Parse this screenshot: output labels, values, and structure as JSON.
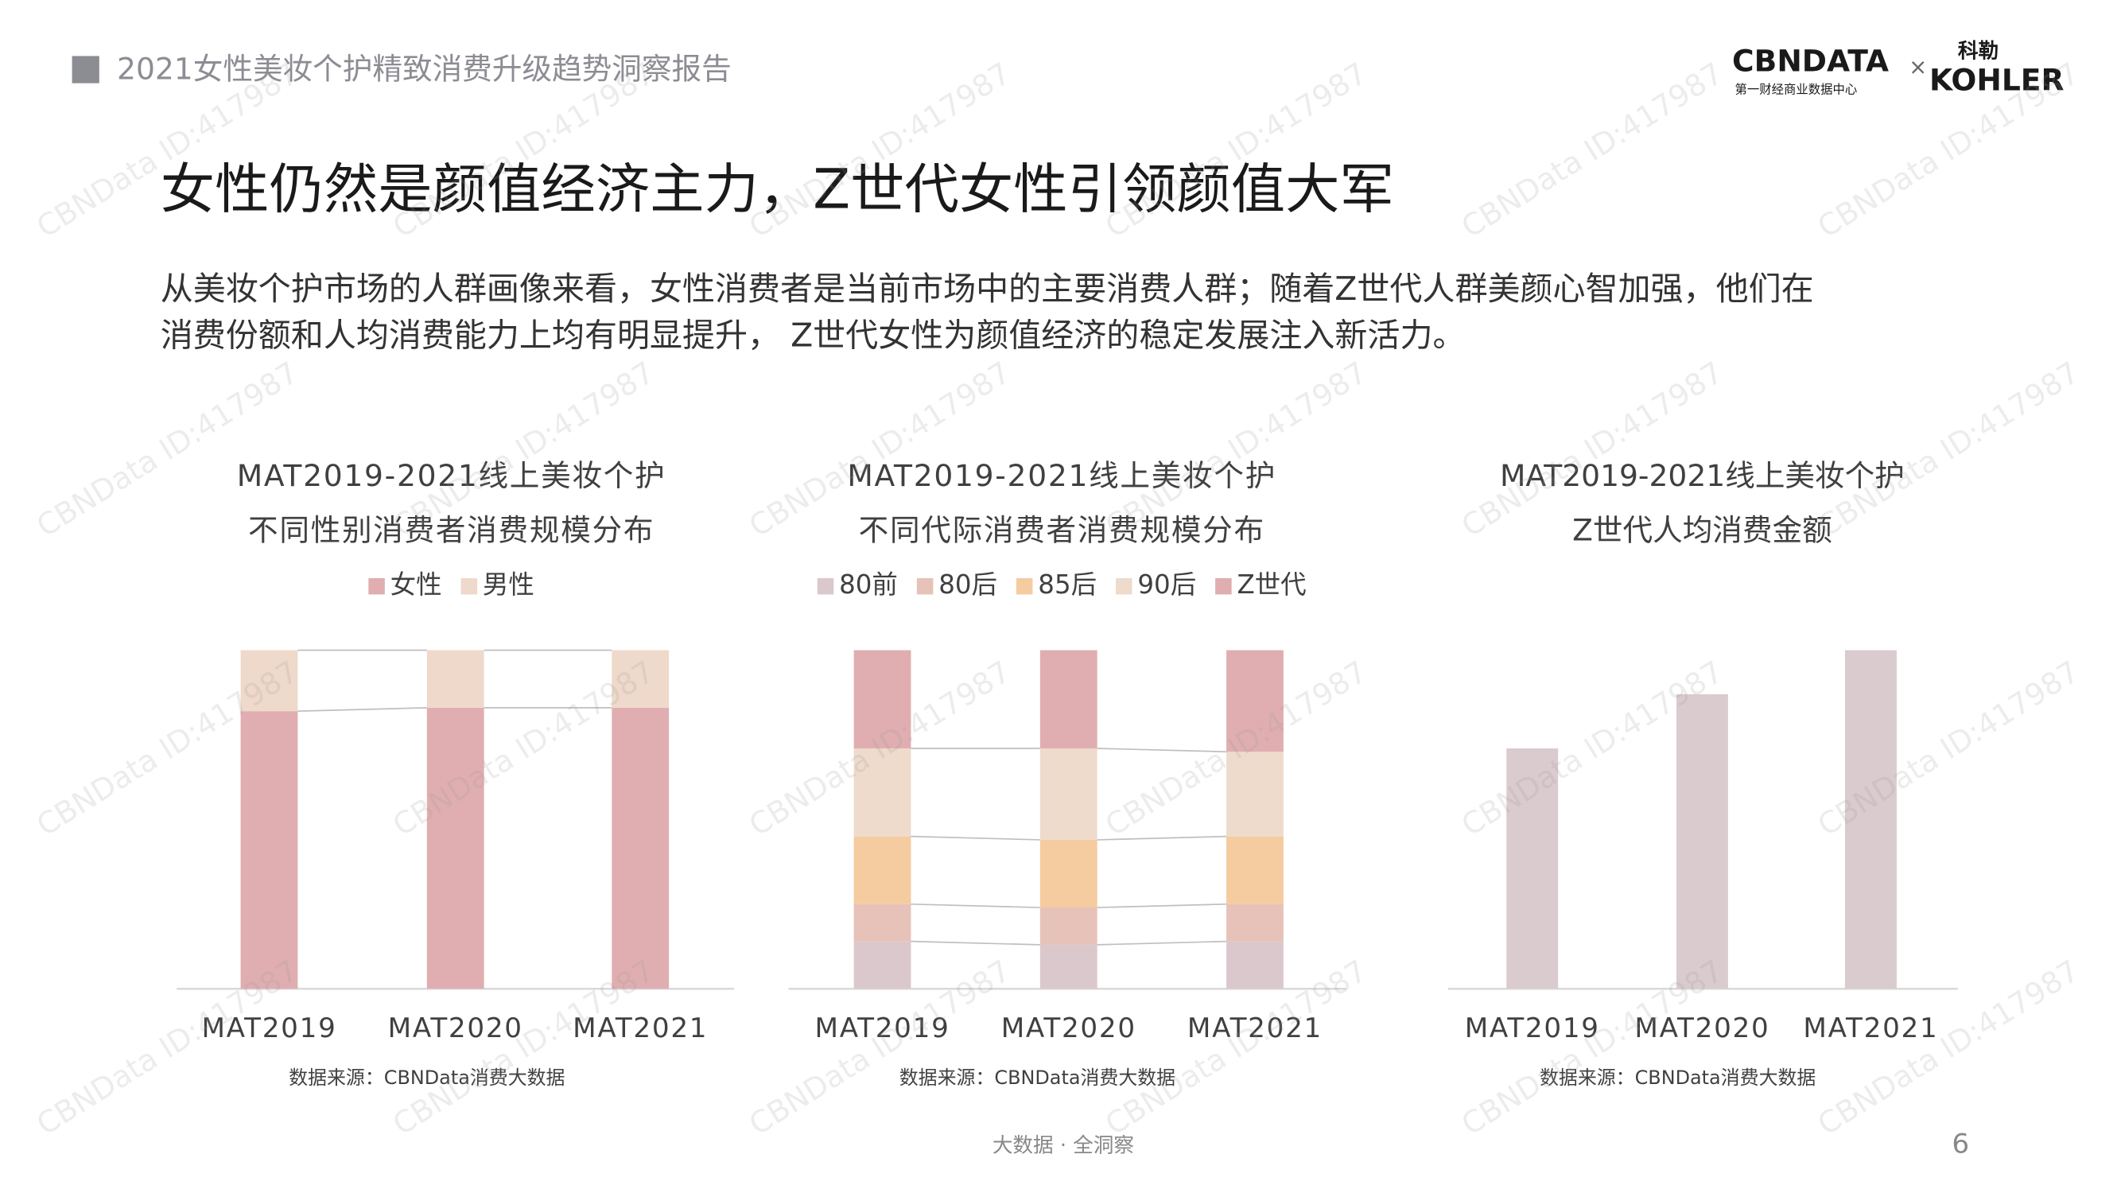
{
  "header": "2021女性美妆个护精致消费升级趋势洞察报告",
  "logo": {
    "brand": "CBNDATA",
    "brand_sub": "第一财经商业数据中心",
    "times": "×",
    "partner_cn": "科勒",
    "partner": "KOHLER"
  },
  "title": "女性仍然是颜值经济主力，Z世代女性引领颜值大军",
  "paragraph": [
    "从美妆个护市场的人群画像来看，女性消费者是当前市场中的主要消费人群；随着Z世代人群美颜心智加强，他们在",
    "消费份额和人均消费能力上均有明显提升， Z世代女性为颜值经济的稳定发展注入新活力。"
  ],
  "watermark": "CBNData ID:417987",
  "footer": "大数据 · 全洞察",
  "page_number": "6",
  "chart_data": [
    {
      "type": "bar",
      "stacked": true,
      "title": [
        "MAT2019-2021线上美妆个护",
        "不同性别消费者消费规模分布"
      ],
      "categories": [
        "MAT2019",
        "MAT2020",
        "MAT2021"
      ],
      "series": [
        {
          "name": "女性",
          "color": "#e0aeb0",
          "values": [
            82,
            83,
            83
          ]
        },
        {
          "name": "男性",
          "color": "#eed9ca",
          "values": [
            18,
            17,
            17
          ]
        }
      ],
      "ylim": [
        0,
        100
      ],
      "source": "数据来源：CBNData消费大数据"
    },
    {
      "type": "bar",
      "stacked": true,
      "title": [
        "MAT2019-2021线上美妆个护",
        "不同代际消费者消费规模分布"
      ],
      "categories": [
        "MAT2019",
        "MAT2020",
        "MAT2021"
      ],
      "series": [
        {
          "name": "80前",
          "color": "#dbc8cc",
          "values": [
            14,
            13,
            14
          ]
        },
        {
          "name": "80后",
          "color": "#e7c2b8",
          "values": [
            11,
            11,
            11
          ]
        },
        {
          "name": "85后",
          "color": "#f5cba0",
          "values": [
            20,
            20,
            20
          ]
        },
        {
          "name": "90后",
          "color": "#eedbcc",
          "values": [
            26,
            27,
            25
          ]
        },
        {
          "name": "Z世代",
          "color": "#e0aeb0",
          "values": [
            29,
            29,
            30
          ]
        }
      ],
      "ylim": [
        0,
        100
      ],
      "source": "数据来源：CBNData消费大数据"
    },
    {
      "type": "bar",
      "title": [
        "MAT2019-2021线上美妆个护",
        "Z世代人均消费金额"
      ],
      "categories": [
        "MAT2019",
        "MAT2020",
        "MAT2021"
      ],
      "values": [
        71,
        87,
        100
      ],
      "color": "#dacbce",
      "ylim": [
        0,
        100
      ],
      "source": "数据来源：CBNData消费大数据"
    }
  ]
}
